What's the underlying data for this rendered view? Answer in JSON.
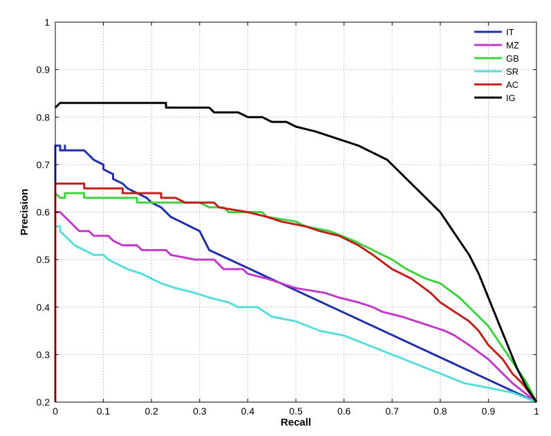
{
  "chart_data": {
    "type": "line",
    "xlabel": "Recall",
    "ylabel": "Precision",
    "xlim": [
      0,
      1
    ],
    "ylim": [
      0.2,
      1
    ],
    "grid": true,
    "grid_style": "dotted",
    "legend_position": "top-right",
    "x_ticks": [
      "0",
      "0.1",
      "0.2",
      "0.3",
      "0.4",
      "0.5",
      "0.6",
      "0.7",
      "0.8",
      "0.9",
      "1"
    ],
    "y_ticks": [
      "0.2",
      "0.3",
      "0.4",
      "0.5",
      "0.6",
      "0.7",
      "0.8",
      "0.9",
      "1"
    ],
    "series": [
      {
        "name": "IT",
        "color": "#1f2fa8",
        "points": [
          [
            0,
            0.6
          ],
          [
            0,
            0.74
          ],
          [
            0.01,
            0.74
          ],
          [
            0.01,
            0.73
          ],
          [
            0.02,
            0.73
          ],
          [
            0.02,
            0.74
          ],
          [
            0.02,
            0.73
          ],
          [
            0.06,
            0.73
          ],
          [
            0.08,
            0.71
          ],
          [
            0.1,
            0.7
          ],
          [
            0.1,
            0.69
          ],
          [
            0.12,
            0.68
          ],
          [
            0.12,
            0.67
          ],
          [
            0.14,
            0.66
          ],
          [
            0.15,
            0.65
          ],
          [
            0.17,
            0.64
          ],
          [
            0.19,
            0.63
          ],
          [
            0.2,
            0.62
          ],
          [
            0.22,
            0.61
          ],
          [
            0.24,
            0.59
          ],
          [
            0.26,
            0.58
          ],
          [
            0.28,
            0.57
          ],
          [
            0.3,
            0.56
          ],
          [
            0.32,
            0.52
          ],
          [
            1.0,
            0.2
          ]
        ]
      },
      {
        "name": "MZ",
        "color": "#c03ac9",
        "points": [
          [
            0,
            0.6
          ],
          [
            0.01,
            0.6
          ],
          [
            0.02,
            0.59
          ],
          [
            0.03,
            0.58
          ],
          [
            0.04,
            0.57
          ],
          [
            0.05,
            0.56
          ],
          [
            0.07,
            0.56
          ],
          [
            0.08,
            0.55
          ],
          [
            0.11,
            0.55
          ],
          [
            0.12,
            0.54
          ],
          [
            0.14,
            0.53
          ],
          [
            0.17,
            0.53
          ],
          [
            0.18,
            0.52
          ],
          [
            0.23,
            0.52
          ],
          [
            0.24,
            0.51
          ],
          [
            0.29,
            0.5
          ],
          [
            0.33,
            0.5
          ],
          [
            0.35,
            0.48
          ],
          [
            0.39,
            0.48
          ],
          [
            0.4,
            0.47
          ],
          [
            0.44,
            0.46
          ],
          [
            0.5,
            0.44
          ],
          [
            0.56,
            0.43
          ],
          [
            0.59,
            0.42
          ],
          [
            0.63,
            0.41
          ],
          [
            0.66,
            0.4
          ],
          [
            0.68,
            0.39
          ],
          [
            0.72,
            0.38
          ],
          [
            0.75,
            0.37
          ],
          [
            0.78,
            0.36
          ],
          [
            0.81,
            0.35
          ],
          [
            0.83,
            0.34
          ],
          [
            0.86,
            0.32
          ],
          [
            0.9,
            0.29
          ],
          [
            0.93,
            0.26
          ],
          [
            0.95,
            0.24
          ],
          [
            1.0,
            0.2
          ]
        ]
      },
      {
        "name": "GB",
        "color": "#3ed23e",
        "points": [
          [
            0,
            0.64
          ],
          [
            0.01,
            0.63
          ],
          [
            0.02,
            0.63
          ],
          [
            0.02,
            0.64
          ],
          [
            0.06,
            0.64
          ],
          [
            0.06,
            0.63
          ],
          [
            0.17,
            0.63
          ],
          [
            0.17,
            0.62
          ],
          [
            0.3,
            0.62
          ],
          [
            0.32,
            0.61
          ],
          [
            0.35,
            0.61
          ],
          [
            0.36,
            0.6
          ],
          [
            0.43,
            0.6
          ],
          [
            0.44,
            0.59
          ],
          [
            0.5,
            0.58
          ],
          [
            0.52,
            0.57
          ],
          [
            0.57,
            0.56
          ],
          [
            0.62,
            0.54
          ],
          [
            0.66,
            0.52
          ],
          [
            0.7,
            0.5
          ],
          [
            0.73,
            0.48
          ],
          [
            0.77,
            0.46
          ],
          [
            0.8,
            0.45
          ],
          [
            0.84,
            0.42
          ],
          [
            0.87,
            0.39
          ],
          [
            0.9,
            0.36
          ],
          [
            0.92,
            0.33
          ],
          [
            0.94,
            0.3
          ],
          [
            0.96,
            0.27
          ],
          [
            0.98,
            0.24
          ],
          [
            1.0,
            0.2
          ]
        ]
      },
      {
        "name": "SR",
        "color": "#58dddd",
        "points": [
          [
            0,
            0.57
          ],
          [
            0.01,
            0.57
          ],
          [
            0.01,
            0.56
          ],
          [
            0.02,
            0.55
          ],
          [
            0.03,
            0.54
          ],
          [
            0.04,
            0.53
          ],
          [
            0.06,
            0.52
          ],
          [
            0.08,
            0.51
          ],
          [
            0.1,
            0.51
          ],
          [
            0.11,
            0.5
          ],
          [
            0.13,
            0.49
          ],
          [
            0.15,
            0.48
          ],
          [
            0.18,
            0.47
          ],
          [
            0.2,
            0.46
          ],
          [
            0.22,
            0.45
          ],
          [
            0.25,
            0.44
          ],
          [
            0.29,
            0.43
          ],
          [
            0.32,
            0.42
          ],
          [
            0.36,
            0.41
          ],
          [
            0.38,
            0.4
          ],
          [
            0.42,
            0.4
          ],
          [
            0.45,
            0.38
          ],
          [
            0.5,
            0.37
          ],
          [
            0.55,
            0.35
          ],
          [
            0.6,
            0.34
          ],
          [
            0.65,
            0.32
          ],
          [
            0.7,
            0.3
          ],
          [
            0.75,
            0.28
          ],
          [
            0.8,
            0.26
          ],
          [
            0.85,
            0.24
          ],
          [
            0.9,
            0.23
          ],
          [
            0.95,
            0.22
          ],
          [
            1.0,
            0.2
          ]
        ]
      },
      {
        "name": "AC",
        "color": "#c0201a",
        "points": [
          [
            0,
            0.2
          ],
          [
            0,
            0.66
          ],
          [
            0.06,
            0.66
          ],
          [
            0.06,
            0.65
          ],
          [
            0.14,
            0.65
          ],
          [
            0.14,
            0.64
          ],
          [
            0.22,
            0.64
          ],
          [
            0.22,
            0.63
          ],
          [
            0.25,
            0.63
          ],
          [
            0.27,
            0.62
          ],
          [
            0.33,
            0.62
          ],
          [
            0.34,
            0.61
          ],
          [
            0.4,
            0.6
          ],
          [
            0.44,
            0.59
          ],
          [
            0.47,
            0.58
          ],
          [
            0.52,
            0.57
          ],
          [
            0.55,
            0.56
          ],
          [
            0.59,
            0.55
          ],
          [
            0.63,
            0.53
          ],
          [
            0.66,
            0.51
          ],
          [
            0.7,
            0.48
          ],
          [
            0.74,
            0.46
          ],
          [
            0.78,
            0.43
          ],
          [
            0.8,
            0.41
          ],
          [
            0.83,
            0.39
          ],
          [
            0.86,
            0.37
          ],
          [
            0.88,
            0.35
          ],
          [
            0.9,
            0.32
          ],
          [
            0.93,
            0.29
          ],
          [
            0.95,
            0.26
          ],
          [
            0.97,
            0.24
          ],
          [
            1.0,
            0.2
          ]
        ]
      },
      {
        "name": "IG",
        "color": "#000000",
        "points": [
          [
            0,
            0.82
          ],
          [
            0.01,
            0.83
          ],
          [
            0.02,
            0.83
          ],
          [
            0.05,
            0.83
          ],
          [
            0.1,
            0.83
          ],
          [
            0.23,
            0.83
          ],
          [
            0.23,
            0.82
          ],
          [
            0.32,
            0.82
          ],
          [
            0.33,
            0.81
          ],
          [
            0.38,
            0.81
          ],
          [
            0.4,
            0.8
          ],
          [
            0.43,
            0.8
          ],
          [
            0.45,
            0.79
          ],
          [
            0.48,
            0.79
          ],
          [
            0.5,
            0.78
          ],
          [
            0.54,
            0.77
          ],
          [
            0.57,
            0.76
          ],
          [
            0.6,
            0.75
          ],
          [
            0.63,
            0.74
          ],
          [
            0.65,
            0.73
          ],
          [
            0.67,
            0.72
          ],
          [
            0.69,
            0.71
          ],
          [
            0.7,
            0.7
          ],
          [
            0.72,
            0.68
          ],
          [
            0.74,
            0.66
          ],
          [
            0.76,
            0.64
          ],
          [
            0.78,
            0.62
          ],
          [
            0.8,
            0.6
          ],
          [
            0.82,
            0.57
          ],
          [
            0.84,
            0.54
          ],
          [
            0.86,
            0.51
          ],
          [
            0.88,
            0.47
          ],
          [
            0.9,
            0.42
          ],
          [
            0.92,
            0.37
          ],
          [
            0.94,
            0.32
          ],
          [
            0.96,
            0.27
          ],
          [
            0.98,
            0.23
          ],
          [
            1.0,
            0.2
          ]
        ]
      }
    ]
  }
}
